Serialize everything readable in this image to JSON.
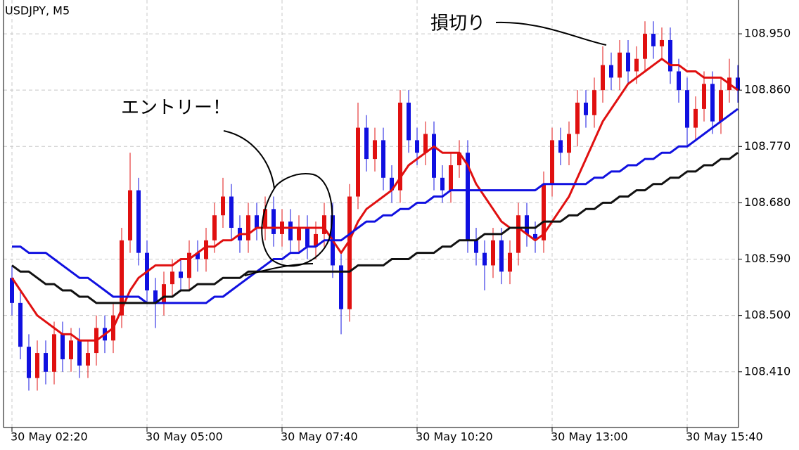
{
  "chart_data": {
    "type": "candlestick",
    "title": "USDJPY, M5",
    "annotations": [
      "エントリー！",
      "損切り"
    ],
    "up_color": "#e01010",
    "down_color": "#1010e0",
    "grid": true,
    "xlim": [
      -1,
      86
    ],
    "ylim": [
      108.321,
      109.004
    ],
    "xticks": [
      {
        "value": 0,
        "label": "30 May 02:20"
      },
      {
        "value": 16,
        "label": "30 May 05:00"
      },
      {
        "value": 32,
        "label": "30 May 07:40"
      },
      {
        "value": 48,
        "label": "30 May 10:20"
      },
      {
        "value": 64,
        "label": "30 May 13:00"
      },
      {
        "value": 80,
        "label": "30 May 15:40"
      }
    ],
    "yticks": [
      {
        "value": 108.41,
        "label": "108.410"
      },
      {
        "value": 108.5,
        "label": "108.500"
      },
      {
        "value": 108.59,
        "label": "108.590"
      },
      {
        "value": 108.68,
        "label": "108.680"
      },
      {
        "value": 108.77,
        "label": "108.770"
      },
      {
        "value": 108.86,
        "label": "108.860"
      },
      {
        "value": 108.95,
        "label": "108.950"
      }
    ],
    "open": [
      108.56,
      108.52,
      108.45,
      108.4,
      108.44,
      108.41,
      108.47,
      108.43,
      108.46,
      108.42,
      108.44,
      108.48,
      108.46,
      108.5,
      108.62,
      108.7,
      108.6,
      108.54,
      108.52,
      108.55,
      108.57,
      108.56,
      108.6,
      108.59,
      108.62,
      108.66,
      108.69,
      108.64,
      108.62,
      108.66,
      108.64,
      108.67,
      108.63,
      108.65,
      108.62,
      108.64,
      108.61,
      108.63,
      108.66,
      108.58,
      108.51,
      108.69,
      108.8,
      108.75,
      108.78,
      108.72,
      108.7,
      108.84,
      108.78,
      108.76,
      108.79,
      108.72,
      108.7,
      108.74,
      108.76,
      108.62,
      108.6,
      108.58,
      108.62,
      108.57,
      108.6,
      108.66,
      108.63,
      108.62,
      108.71,
      108.78,
      108.76,
      108.79,
      108.84,
      108.82,
      108.86,
      108.9,
      108.88,
      108.92,
      108.89,
      108.91,
      108.95,
      108.93,
      108.94,
      108.89,
      108.86,
      108.8,
      108.83,
      108.87,
      108.81,
      108.86,
      108.88
    ],
    "high": [
      108.58,
      108.54,
      108.47,
      108.46,
      108.46,
      108.49,
      108.49,
      108.48,
      108.48,
      108.46,
      108.5,
      108.5,
      108.52,
      108.64,
      108.76,
      108.72,
      108.62,
      108.56,
      108.57,
      108.59,
      108.59,
      108.62,
      108.62,
      108.64,
      108.68,
      108.72,
      108.71,
      108.66,
      108.68,
      108.68,
      108.69,
      108.69,
      108.67,
      108.67,
      108.66,
      108.66,
      108.65,
      108.68,
      108.68,
      108.6,
      108.71,
      108.84,
      108.82,
      108.8,
      108.8,
      108.74,
      108.86,
      108.86,
      108.8,
      108.81,
      108.81,
      108.74,
      108.76,
      108.78,
      108.78,
      108.64,
      108.62,
      108.64,
      108.64,
      108.62,
      108.68,
      108.68,
      108.65,
      108.73,
      108.8,
      108.8,
      108.81,
      108.86,
      108.86,
      108.88,
      108.93,
      108.92,
      108.94,
      108.94,
      108.93,
      108.97,
      108.97,
      108.96,
      108.96,
      108.91,
      108.88,
      108.85,
      108.89,
      108.89,
      108.88,
      108.91,
      108.9
    ],
    "low": [
      108.5,
      108.43,
      108.38,
      108.38,
      108.39,
      108.39,
      108.41,
      108.41,
      108.4,
      108.4,
      108.42,
      108.44,
      108.44,
      108.48,
      108.6,
      108.58,
      108.52,
      108.48,
      108.5,
      108.53,
      108.54,
      108.54,
      108.57,
      108.57,
      108.6,
      108.64,
      108.62,
      108.6,
      108.6,
      108.62,
      108.62,
      108.61,
      108.61,
      108.6,
      108.6,
      108.59,
      108.59,
      108.61,
      108.56,
      108.47,
      108.49,
      108.67,
      108.73,
      108.73,
      108.7,
      108.68,
      108.68,
      108.76,
      108.74,
      108.74,
      108.7,
      108.68,
      108.68,
      108.72,
      108.6,
      108.58,
      108.54,
      108.56,
      108.55,
      108.55,
      108.58,
      108.61,
      108.6,
      108.6,
      108.69,
      108.74,
      108.74,
      108.77,
      108.8,
      108.8,
      108.84,
      108.86,
      108.86,
      108.87,
      108.87,
      108.89,
      108.91,
      108.91,
      108.87,
      108.84,
      108.77,
      108.78,
      108.81,
      108.79,
      108.79,
      108.84,
      108.84
    ],
    "close": [
      108.52,
      108.45,
      108.4,
      108.44,
      108.41,
      108.47,
      108.43,
      108.46,
      108.42,
      108.44,
      108.48,
      108.46,
      108.5,
      108.62,
      108.7,
      108.6,
      108.54,
      108.52,
      108.55,
      108.57,
      108.56,
      108.6,
      108.59,
      108.62,
      108.66,
      108.69,
      108.64,
      108.62,
      108.66,
      108.64,
      108.67,
      108.63,
      108.65,
      108.62,
      108.64,
      108.61,
      108.63,
      108.66,
      108.58,
      108.51,
      108.69,
      108.8,
      108.75,
      108.78,
      108.72,
      108.7,
      108.84,
      108.78,
      108.76,
      108.79,
      108.72,
      108.7,
      108.74,
      108.76,
      108.62,
      108.6,
      108.58,
      108.62,
      108.57,
      108.6,
      108.66,
      108.63,
      108.62,
      108.71,
      108.78,
      108.76,
      108.79,
      108.84,
      108.82,
      108.86,
      108.9,
      108.88,
      108.92,
      108.89,
      108.91,
      108.95,
      108.93,
      108.94,
      108.89,
      108.86,
      108.8,
      108.83,
      108.87,
      108.81,
      108.86,
      108.88,
      108.86
    ],
    "series": [
      {
        "color": "#e01010",
        "values": [
          108.56,
          108.54,
          108.52,
          108.5,
          108.49,
          108.48,
          108.47,
          108.47,
          108.46,
          108.46,
          108.46,
          108.47,
          108.48,
          108.51,
          108.54,
          108.56,
          108.57,
          108.58,
          108.58,
          108.58,
          108.59,
          108.59,
          108.6,
          108.61,
          108.61,
          108.62,
          108.62,
          108.63,
          108.63,
          108.64,
          108.64,
          108.64,
          108.64,
          108.64,
          108.64,
          108.64,
          108.64,
          108.64,
          108.62,
          108.6,
          108.62,
          108.65,
          108.67,
          108.68,
          108.69,
          108.7,
          108.72,
          108.74,
          108.75,
          108.76,
          108.77,
          108.76,
          108.76,
          108.76,
          108.74,
          108.71,
          108.69,
          108.67,
          108.65,
          108.64,
          108.64,
          108.63,
          108.62,
          108.63,
          108.65,
          108.67,
          108.69,
          108.72,
          108.75,
          108.78,
          108.81,
          108.83,
          108.85,
          108.87,
          108.88,
          108.89,
          108.9,
          108.91,
          108.9,
          108.9,
          108.89,
          108.89,
          108.88,
          108.88,
          108.88,
          108.87,
          108.86
        ]
      },
      {
        "color": "#1010e0",
        "values": [
          108.61,
          108.61,
          108.6,
          108.6,
          108.6,
          108.59,
          108.58,
          108.57,
          108.56,
          108.56,
          108.55,
          108.54,
          108.53,
          108.53,
          108.53,
          108.53,
          108.52,
          108.52,
          108.52,
          108.52,
          108.52,
          108.52,
          108.52,
          108.52,
          108.53,
          108.53,
          108.54,
          108.55,
          108.56,
          108.57,
          108.58,
          108.59,
          108.59,
          108.6,
          108.6,
          108.61,
          108.61,
          108.62,
          108.62,
          108.62,
          108.63,
          108.64,
          108.65,
          108.65,
          108.66,
          108.66,
          108.67,
          108.67,
          108.68,
          108.68,
          108.69,
          108.69,
          108.7,
          108.7,
          108.7,
          108.7,
          108.7,
          108.7,
          108.7,
          108.7,
          108.7,
          108.7,
          108.7,
          108.71,
          108.71,
          108.71,
          108.71,
          108.71,
          108.71,
          108.72,
          108.72,
          108.73,
          108.73,
          108.74,
          108.74,
          108.75,
          108.75,
          108.76,
          108.76,
          108.77,
          108.77,
          108.78,
          108.79,
          108.8,
          108.81,
          108.82,
          108.83
        ]
      },
      {
        "color": "#111111",
        "values": [
          108.58,
          108.57,
          108.57,
          108.56,
          108.55,
          108.55,
          108.54,
          108.54,
          108.53,
          108.53,
          108.52,
          108.52,
          108.52,
          108.52,
          108.52,
          108.52,
          108.52,
          108.52,
          108.53,
          108.53,
          108.54,
          108.54,
          108.55,
          108.55,
          108.55,
          108.56,
          108.56,
          108.56,
          108.57,
          108.57,
          108.57,
          108.57,
          108.57,
          108.57,
          108.57,
          108.57,
          108.57,
          108.57,
          108.57,
          108.57,
          108.57,
          108.58,
          108.58,
          108.58,
          108.58,
          108.59,
          108.59,
          108.59,
          108.6,
          108.6,
          108.6,
          108.61,
          108.61,
          108.62,
          108.62,
          108.62,
          108.63,
          108.63,
          108.63,
          108.64,
          108.64,
          108.64,
          108.64,
          108.65,
          108.65,
          108.65,
          108.66,
          108.66,
          108.67,
          108.67,
          108.68,
          108.68,
          108.69,
          108.69,
          108.7,
          108.7,
          108.71,
          108.71,
          108.72,
          108.72,
          108.73,
          108.73,
          108.74,
          108.74,
          108.75,
          108.75,
          108.76
        ]
      }
    ]
  }
}
